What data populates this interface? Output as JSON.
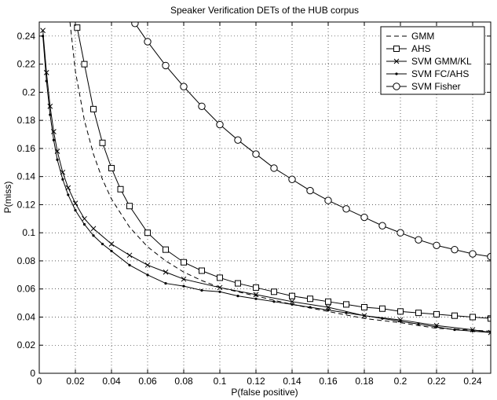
{
  "chart_data": {
    "type": "line",
    "title": "Speaker Verification DETs of the HUB corpus",
    "xlabel": "P(false positive)",
    "ylabel": "P(miss)",
    "xlim": [
      0,
      0.25
    ],
    "ylim": [
      0,
      0.25
    ],
    "xticks": [
      "0",
      "0.02",
      "0.04",
      "0.06",
      "0.08",
      "0.1",
      "0.12",
      "0.14",
      "0.16",
      "0.18",
      "0.2",
      "0.22",
      "0.24"
    ],
    "yticks": [
      "0",
      "0.02",
      "0.04",
      "0.06",
      "0.08",
      "0.1",
      "0.12",
      "0.14",
      "0.16",
      "0.18",
      "0.2",
      "0.22",
      "0.24"
    ],
    "grid": true,
    "legend_position": "top-right",
    "series": [
      {
        "name": "GMM",
        "line": "dashed",
        "marker": "none",
        "x": [
          0.017,
          0.02,
          0.025,
          0.03,
          0.035,
          0.04,
          0.05,
          0.06,
          0.07,
          0.08,
          0.09,
          0.1,
          0.12,
          0.14,
          0.16,
          0.18,
          0.2,
          0.22,
          0.25
        ],
        "y": [
          0.25,
          0.215,
          0.18,
          0.156,
          0.138,
          0.124,
          0.104,
          0.09,
          0.08,
          0.072,
          0.066,
          0.061,
          0.055,
          0.049,
          0.044,
          0.039,
          0.036,
          0.032,
          0.03
        ]
      },
      {
        "name": "AHS",
        "line": "solid",
        "marker": "square",
        "x": [
          0.021,
          0.025,
          0.03,
          0.035,
          0.04,
          0.045,
          0.05,
          0.06,
          0.07,
          0.08,
          0.09,
          0.1,
          0.11,
          0.12,
          0.13,
          0.14,
          0.15,
          0.16,
          0.17,
          0.18,
          0.19,
          0.2,
          0.21,
          0.22,
          0.23,
          0.24,
          0.25
        ],
        "y": [
          0.246,
          0.22,
          0.188,
          0.164,
          0.146,
          0.131,
          0.119,
          0.1,
          0.088,
          0.079,
          0.073,
          0.068,
          0.064,
          0.061,
          0.058,
          0.055,
          0.053,
          0.051,
          0.049,
          0.047,
          0.046,
          0.044,
          0.043,
          0.042,
          0.041,
          0.04,
          0.039
        ]
      },
      {
        "name": "SVM GMM/KL",
        "line": "solid",
        "marker": "x",
        "x": [
          0.002,
          0.004,
          0.006,
          0.008,
          0.01,
          0.013,
          0.016,
          0.02,
          0.025,
          0.03,
          0.04,
          0.05,
          0.06,
          0.07,
          0.08,
          0.1,
          0.12,
          0.14,
          0.16,
          0.18,
          0.2,
          0.22,
          0.24,
          0.25
        ],
        "y": [
          0.244,
          0.214,
          0.19,
          0.172,
          0.158,
          0.143,
          0.132,
          0.121,
          0.11,
          0.103,
          0.092,
          0.084,
          0.077,
          0.072,
          0.067,
          0.061,
          0.056,
          0.051,
          0.047,
          0.041,
          0.038,
          0.034,
          0.031,
          0.029
        ]
      },
      {
        "name": "SVM FC/AHS",
        "line": "solid",
        "marker": "dot",
        "x": [
          0.002,
          0.004,
          0.006,
          0.008,
          0.01,
          0.013,
          0.016,
          0.02,
          0.025,
          0.03,
          0.035,
          0.04,
          0.05,
          0.06,
          0.07,
          0.08,
          0.09,
          0.1,
          0.11,
          0.12,
          0.13,
          0.14,
          0.15,
          0.16,
          0.17,
          0.18,
          0.19,
          0.2,
          0.21,
          0.22,
          0.23,
          0.24,
          0.25
        ],
        "y": [
          0.24,
          0.208,
          0.184,
          0.166,
          0.152,
          0.138,
          0.127,
          0.116,
          0.106,
          0.098,
          0.092,
          0.087,
          0.077,
          0.07,
          0.064,
          0.062,
          0.059,
          0.058,
          0.055,
          0.053,
          0.051,
          0.049,
          0.047,
          0.045,
          0.043,
          0.041,
          0.039,
          0.037,
          0.035,
          0.033,
          0.031,
          0.03,
          0.029
        ]
      },
      {
        "name": "SVM Fisher",
        "line": "solid",
        "marker": "circle",
        "x": [
          0.053,
          0.06,
          0.07,
          0.08,
          0.09,
          0.1,
          0.11,
          0.12,
          0.13,
          0.14,
          0.15,
          0.16,
          0.17,
          0.18,
          0.19,
          0.2,
          0.21,
          0.22,
          0.23,
          0.24,
          0.25
        ],
        "y": [
          0.249,
          0.236,
          0.219,
          0.204,
          0.19,
          0.177,
          0.166,
          0.156,
          0.146,
          0.138,
          0.13,
          0.123,
          0.117,
          0.111,
          0.105,
          0.1,
          0.095,
          0.091,
          0.088,
          0.085,
          0.083
        ]
      }
    ]
  }
}
